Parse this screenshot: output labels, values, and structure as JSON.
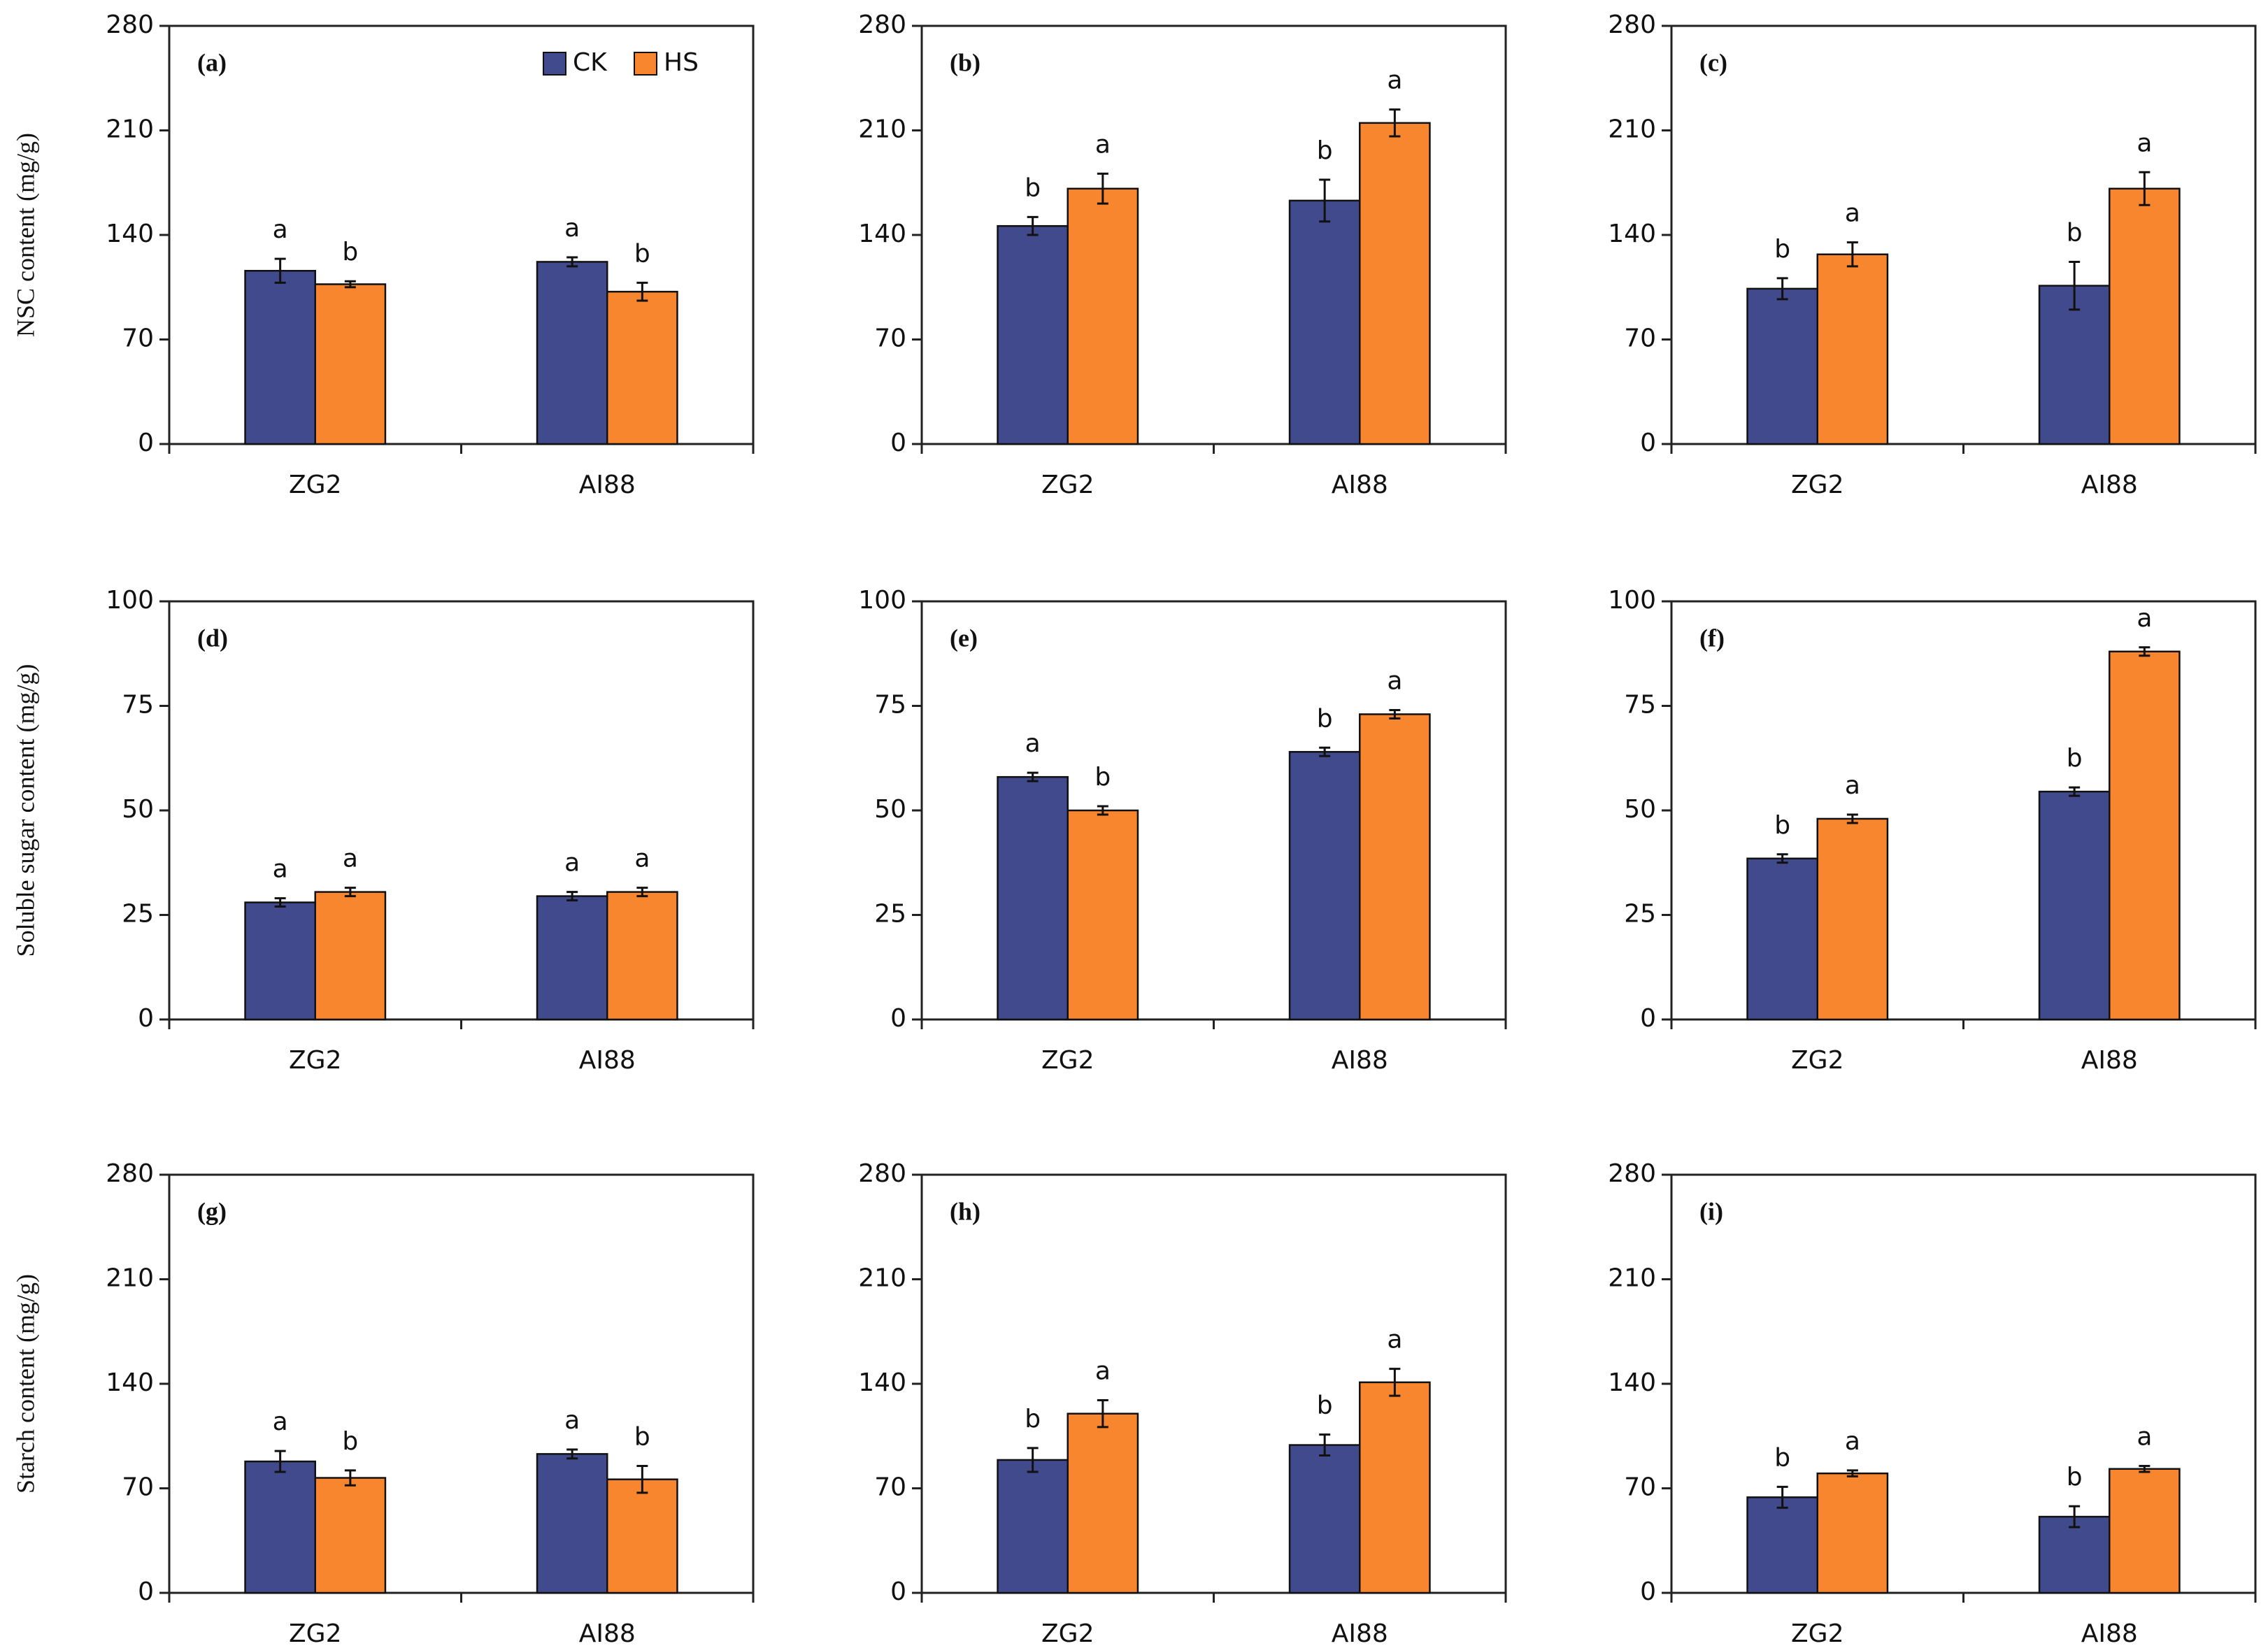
{
  "chart_data": [
    {
      "type": "bar",
      "panel": "(a)",
      "ylabel": "NSC content (mg/g)",
      "legend": "upper right",
      "categories": [
        "ZG2",
        "AI88"
      ],
      "ylim": [
        0,
        280
      ],
      "yticks": [
        0,
        70,
        140,
        210,
        280
      ],
      "series": [
        {
          "name": "CK",
          "color": "#414a8c",
          "values": [
            116,
            122
          ],
          "errors": [
            8,
            3
          ],
          "letters": [
            "a",
            "a"
          ]
        },
        {
          "name": "HS",
          "color": "#f7862e",
          "values": [
            107,
            102
          ],
          "errors": [
            2,
            6
          ],
          "letters": [
            "b",
            "b"
          ]
        }
      ]
    },
    {
      "type": "bar",
      "panel": "(b)",
      "categories": [
        "ZG2",
        "AI88"
      ],
      "ylim": [
        0,
        280
      ],
      "yticks": [
        0,
        70,
        140,
        210,
        280
      ],
      "series": [
        {
          "name": "CK",
          "color": "#414a8c",
          "values": [
            146,
            163
          ],
          "errors": [
            6,
            14
          ],
          "letters": [
            "b",
            "b"
          ]
        },
        {
          "name": "HS",
          "color": "#f7862e",
          "values": [
            171,
            215
          ],
          "errors": [
            10,
            9
          ],
          "letters": [
            "a",
            "a"
          ]
        }
      ]
    },
    {
      "type": "bar",
      "panel": "(c)",
      "categories": [
        "ZG2",
        "AI88"
      ],
      "ylim": [
        0,
        280
      ],
      "yticks": [
        0,
        70,
        140,
        210,
        280
      ],
      "series": [
        {
          "name": "CK",
          "color": "#414a8c",
          "values": [
            104,
            106
          ],
          "errors": [
            7,
            16
          ],
          "letters": [
            "b",
            "b"
          ]
        },
        {
          "name": "HS",
          "color": "#f7862e",
          "values": [
            127,
            171
          ],
          "errors": [
            8,
            11
          ],
          "letters": [
            "a",
            "a"
          ]
        }
      ]
    },
    {
      "type": "bar",
      "panel": "(d)",
      "ylabel": "Soluble sugar content (mg/g)",
      "categories": [
        "ZG2",
        "AI88"
      ],
      "ylim": [
        0,
        100
      ],
      "yticks": [
        0,
        25,
        50,
        75,
        100
      ],
      "series": [
        {
          "name": "CK",
          "color": "#414a8c",
          "values": [
            28,
            29.5
          ],
          "errors": [
            1,
            1
          ],
          "letters": [
            "a",
            "a"
          ]
        },
        {
          "name": "HS",
          "color": "#f7862e",
          "values": [
            30.5,
            30.5
          ],
          "errors": [
            1,
            1
          ],
          "letters": [
            "a",
            "a"
          ]
        }
      ]
    },
    {
      "type": "bar",
      "panel": "(e)",
      "categories": [
        "ZG2",
        "AI88"
      ],
      "ylim": [
        0,
        100
      ],
      "yticks": [
        0,
        25,
        50,
        75,
        100
      ],
      "series": [
        {
          "name": "CK",
          "color": "#414a8c",
          "values": [
            58,
            64
          ],
          "errors": [
            1,
            1
          ],
          "letters": [
            "a",
            "b"
          ]
        },
        {
          "name": "HS",
          "color": "#f7862e",
          "values": [
            50,
            73
          ],
          "errors": [
            1,
            1
          ],
          "letters": [
            "b",
            "a"
          ]
        }
      ]
    },
    {
      "type": "bar",
      "panel": "(f)",
      "categories": [
        "ZG2",
        "AI88"
      ],
      "ylim": [
        0,
        100
      ],
      "yticks": [
        0,
        25,
        50,
        75,
        100
      ],
      "series": [
        {
          "name": "CK",
          "color": "#414a8c",
          "values": [
            38.5,
            54.5
          ],
          "errors": [
            1,
            1
          ],
          "letters": [
            "b",
            "b"
          ]
        },
        {
          "name": "HS",
          "color": "#f7862e",
          "values": [
            48,
            88
          ],
          "errors": [
            1,
            1
          ],
          "letters": [
            "a",
            "a"
          ]
        }
      ]
    },
    {
      "type": "bar",
      "panel": "(g)",
      "ylabel": "Starch content (mg/g)",
      "categories": [
        "ZG2",
        "AI88"
      ],
      "ylim": [
        0,
        280
      ],
      "yticks": [
        0,
        70,
        140,
        210,
        280
      ],
      "series": [
        {
          "name": "CK",
          "color": "#414a8c",
          "values": [
            88,
            93
          ],
          "errors": [
            7,
            3
          ],
          "letters": [
            "a",
            "a"
          ]
        },
        {
          "name": "HS",
          "color": "#f7862e",
          "values": [
            77,
            76
          ],
          "errors": [
            5,
            9
          ],
          "letters": [
            "b",
            "b"
          ]
        }
      ]
    },
    {
      "type": "bar",
      "panel": "(h)",
      "categories": [
        "ZG2",
        "AI88"
      ],
      "ylim": [
        0,
        280
      ],
      "yticks": [
        0,
        70,
        140,
        210,
        280
      ],
      "series": [
        {
          "name": "CK",
          "color": "#414a8c",
          "values": [
            89,
            99
          ],
          "errors": [
            8,
            7
          ],
          "letters": [
            "b",
            "b"
          ]
        },
        {
          "name": "HS",
          "color": "#f7862e",
          "values": [
            120,
            141
          ],
          "errors": [
            9,
            9
          ],
          "letters": [
            "a",
            "a"
          ]
        }
      ]
    },
    {
      "type": "bar",
      "panel": "(i)",
      "categories": [
        "ZG2",
        "AI88"
      ],
      "ylim": [
        0,
        280
      ],
      "yticks": [
        0,
        70,
        140,
        210,
        280
      ],
      "series": [
        {
          "name": "CK",
          "color": "#414a8c",
          "values": [
            64,
            51
          ],
          "errors": [
            7,
            7
          ],
          "letters": [
            "b",
            "b"
          ]
        },
        {
          "name": "HS",
          "color": "#f7862e",
          "values": [
            80,
            83
          ],
          "errors": [
            2,
            2
          ],
          "letters": [
            "a",
            "a"
          ]
        }
      ]
    }
  ]
}
